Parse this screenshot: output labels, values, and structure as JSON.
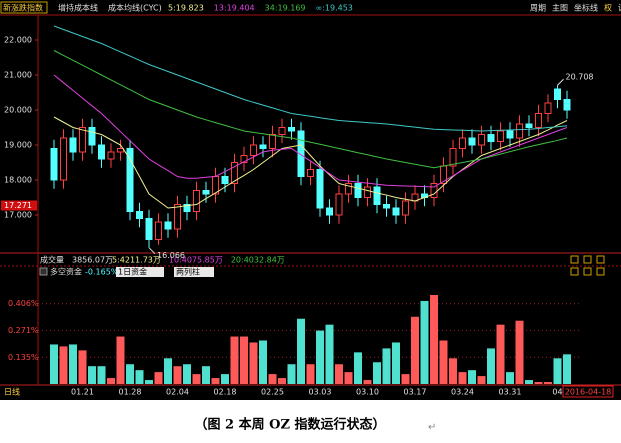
{
  "chart_data": {
    "type": "candlestick",
    "index_name": "新涨跌指数",
    "indicator": "增持成本线",
    "indicator_sub": "成本均线(CYC)",
    "toolbar": [
      "周期",
      "主图",
      "坐标线",
      "权",
      "设置"
    ],
    "categories": [
      null,
      null,
      null,
      "01.21",
      null,
      null,
      null,
      null,
      "01.28",
      null,
      null,
      null,
      null,
      "02.04",
      null,
      null,
      null,
      null,
      "02.18",
      null,
      null,
      null,
      null,
      "02.25",
      null,
      null,
      null,
      null,
      "03.03",
      null,
      null,
      null,
      null,
      "03.10",
      null,
      null,
      null,
      null,
      "03.17",
      null,
      null,
      null,
      null,
      "03.24",
      null,
      null,
      null,
      null,
      "03.31",
      null,
      null,
      null,
      null,
      "04",
      null
    ],
    "open": [
      18.9,
      18.0,
      19.2,
      18.8,
      19.5,
      19.0,
      18.6,
      18.8,
      18.9,
      17.1,
      16.9,
      16.3,
      16.8,
      16.6,
      17.3,
      17.1,
      17.7,
      17.6,
      18.1,
      17.9,
      18.5,
      18.7,
      19.0,
      18.9,
      19.3,
      19.5,
      19.4,
      18.1,
      18.3,
      17.2,
      17.0,
      17.6,
      17.9,
      17.5,
      17.8,
      17.3,
      17.2,
      17.0,
      17.4,
      17.6,
      17.5,
      17.9,
      18.4,
      18.9,
      19.2,
      19.0,
      19.3,
      19.1,
      19.4,
      19.2,
      19.6,
      19.5,
      19.9,
      20.6,
      20.3
    ],
    "high": [
      19.15,
      19.45,
      19.45,
      19.75,
      19.75,
      19.25,
      19.05,
      19.15,
      19.15,
      17.35,
      17.15,
      17.05,
      17.05,
      17.55,
      17.55,
      17.95,
      17.95,
      18.35,
      18.35,
      18.75,
      18.95,
      19.25,
      19.25,
      19.55,
      19.75,
      19.75,
      19.65,
      18.55,
      18.55,
      17.45,
      17.85,
      18.15,
      18.15,
      18.05,
      18.05,
      17.55,
      17.45,
      17.65,
      17.85,
      17.85,
      18.15,
      18.65,
      19.15,
      19.45,
      19.45,
      19.55,
      19.55,
      19.65,
      19.65,
      19.85,
      19.85,
      20.15,
      20.45,
      20.708,
      20.55
    ],
    "low": [
      17.75,
      17.75,
      18.55,
      18.55,
      18.75,
      18.35,
      18.35,
      18.55,
      16.85,
      16.65,
      16.066,
      16.15,
      16.35,
      16.35,
      16.85,
      16.85,
      17.35,
      17.35,
      17.65,
      17.65,
      18.25,
      18.45,
      18.65,
      18.65,
      19.05,
      19.15,
      17.85,
      17.85,
      16.95,
      16.75,
      16.75,
      17.35,
      17.25,
      17.25,
      17.05,
      16.95,
      16.75,
      16.75,
      17.15,
      17.25,
      17.25,
      17.65,
      18.15,
      18.65,
      18.75,
      18.75,
      18.85,
      18.85,
      18.95,
      18.95,
      19.25,
      19.25,
      19.65,
      20.05,
      19.75
    ],
    "close": [
      18.0,
      19.2,
      18.8,
      19.5,
      19.0,
      18.6,
      18.8,
      18.9,
      17.1,
      16.9,
      16.3,
      16.8,
      16.6,
      17.3,
      17.1,
      17.7,
      17.6,
      18.1,
      17.9,
      18.5,
      18.7,
      19.0,
      18.9,
      19.3,
      19.5,
      19.4,
      18.1,
      18.3,
      17.2,
      17.0,
      17.6,
      17.9,
      17.5,
      17.8,
      17.3,
      17.2,
      17.0,
      17.4,
      17.6,
      17.5,
      17.9,
      18.4,
      18.9,
      19.2,
      19.0,
      19.3,
      19.1,
      19.4,
      19.2,
      19.6,
      19.5,
      19.9,
      20.2,
      20.3,
      20.0
    ],
    "up_color": "#ff4040",
    "down_color": "#54ffff",
    "ylim": [
      16.0,
      22.6
    ],
    "yticks": [
      {
        "value": 22,
        "label": "22.000"
      },
      {
        "value": 21,
        "label": "21.000"
      },
      {
        "value": 20,
        "label": "20.000"
      },
      {
        "value": 19,
        "label": "19.000"
      },
      {
        "value": 18,
        "label": "18.000"
      },
      {
        "value": 17,
        "label": "17.000"
      }
    ],
    "price_marker": 17.271,
    "series": [
      {
        "name": "5:19.823",
        "color": "#f0f090",
        "values": [
          19.8,
          19.65,
          19.5,
          19.43,
          19.37,
          19.3,
          19.15,
          19.0,
          18.6,
          18.1,
          17.6,
          17.4,
          17.2,
          17.23,
          17.27,
          17.3,
          17.47,
          17.63,
          17.8,
          17.97,
          18.13,
          18.3,
          18.5,
          18.7,
          18.9,
          18.95,
          19.0,
          18.7,
          18.4,
          18.15,
          17.9,
          17.83,
          17.77,
          17.7,
          17.63,
          17.57,
          17.5,
          17.45,
          17.4,
          17.5,
          17.6,
          17.85,
          18.1,
          18.3,
          18.5,
          18.7,
          18.8,
          18.9,
          19.0,
          19.1,
          19.2,
          19.3,
          19.43,
          19.57,
          19.7
        ]
      },
      {
        "name": "13:19.404",
        "color": "#e040e0",
        "values": [
          21.0,
          20.78,
          20.56,
          20.34,
          20.12,
          19.9,
          19.64,
          19.38,
          19.12,
          18.86,
          18.6,
          18.43,
          18.27,
          18.1,
          18.05,
          18.05,
          18.08,
          18.1,
          18.24,
          18.38,
          18.52,
          18.66,
          18.8,
          18.85,
          18.88,
          18.9,
          18.72,
          18.54,
          18.36,
          18.18,
          18.0,
          17.97,
          17.94,
          17.91,
          17.88,
          17.85,
          17.84,
          17.83,
          17.82,
          17.81,
          17.8,
          17.96,
          18.12,
          18.28,
          18.44,
          18.6,
          18.7,
          18.8,
          18.9,
          19.0,
          19.1,
          19.2,
          19.3,
          19.4,
          19.5
        ]
      },
      {
        "name": "34:19.169",
        "color": "#40c040",
        "values": [
          21.7,
          21.56,
          21.42,
          21.28,
          21.14,
          21.0,
          20.86,
          20.72,
          20.58,
          20.44,
          20.3,
          20.2,
          20.1,
          20.0,
          19.9,
          19.8,
          19.72,
          19.64,
          19.56,
          19.48,
          19.4,
          19.36,
          19.32,
          19.28,
          19.24,
          19.2,
          19.14,
          19.08,
          19.02,
          18.96,
          18.9,
          18.84,
          18.78,
          18.72,
          18.66,
          18.6,
          18.55,
          18.5,
          18.45,
          18.4,
          18.35,
          18.4,
          18.45,
          18.5,
          18.55,
          18.6,
          18.67,
          18.74,
          18.81,
          18.88,
          18.95,
          19.01,
          19.07,
          19.13,
          19.2
        ]
      },
      {
        "name": "∞:19.453",
        "color": "#40c8c8",
        "values": [
          22.4,
          22.3,
          22.2,
          22.1,
          22.0,
          21.9,
          21.78,
          21.66,
          21.54,
          21.42,
          21.3,
          21.2,
          21.1,
          21.0,
          20.9,
          20.8,
          20.7,
          20.6,
          20.5,
          20.4,
          20.3,
          20.22,
          20.14,
          20.06,
          19.98,
          19.9,
          19.86,
          19.82,
          19.78,
          19.74,
          19.7,
          19.68,
          19.66,
          19.64,
          19.62,
          19.6,
          19.57,
          19.54,
          19.51,
          19.48,
          19.45,
          19.44,
          19.43,
          19.42,
          19.41,
          19.4,
          19.41,
          19.42,
          19.43,
          19.44,
          19.45,
          19.47,
          19.5,
          19.52,
          19.55
        ]
      }
    ],
    "volume": {
      "title": "成交量",
      "total": "3856.07万",
      "ma_labels": [
        {
          "text": "5:4211.73万",
          "color": "#f0f090"
        },
        {
          "text": "10:4075.85万",
          "color": "#e040e0"
        },
        {
          "text": "20:4032.84万",
          "color": "#40c040"
        }
      ],
      "values": [
        0.2,
        0.19,
        0.2,
        0.17,
        0.09,
        0.09,
        0.03,
        0.24,
        0.1,
        0.07,
        0.02,
        0.06,
        0.13,
        0.09,
        0.1,
        0.05,
        0.09,
        0.03,
        0.05,
        0.24,
        0.24,
        0.21,
        0.22,
        0.05,
        0.03,
        0.1,
        0.33,
        0.1,
        0.27,
        0.3,
        0.1,
        0.06,
        0.16,
        0.02,
        0.11,
        0.18,
        0.21,
        0.05,
        0.34,
        0.42,
        0.45,
        0.22,
        0.13,
        0.06,
        0.07,
        0.04,
        0.18,
        0.3,
        0.06,
        0.32,
        0.02,
        0.01,
        0.01,
        0.13,
        0.15
      ],
      "up_color": "#ff5a5a",
      "down_color": "#50e0d0",
      "ylim": [
        0,
        0.45
      ],
      "yticks": [
        {
          "value": 0.406,
          "label": "0.406%"
        },
        {
          "value": 0.271,
          "label": "0.271%"
        },
        {
          "value": 0.135,
          "label": "0.135%"
        }
      ],
      "grid": true
    },
    "fund": {
      "label": "多空资金",
      "reading": "-0.165%",
      "dropdowns": [
        "1日资金",
        "两列柱"
      ]
    },
    "period": "日线",
    "date_box": "2016-04-18",
    "caption": "（图 2 本周 OZ 指数运行状态）",
    "caption_mark": "↵"
  }
}
